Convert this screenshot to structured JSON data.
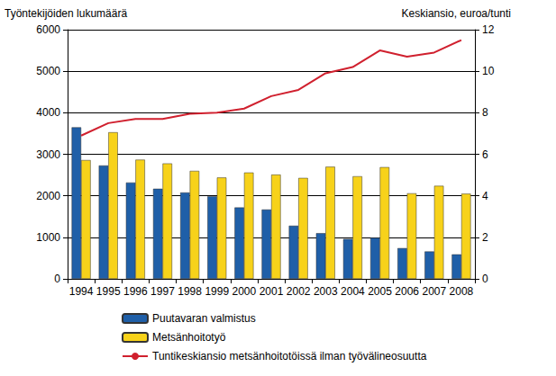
{
  "chart_data": {
    "type": "bar",
    "ylabel": "Työntekijöiden lukumäärä",
    "y2label": "Keskiansio, euroa/tunti",
    "categories": [
      "1994",
      "1995",
      "1996",
      "1997",
      "1998",
      "1999",
      "2000",
      "2001",
      "2002",
      "2003",
      "2004",
      "2005",
      "2006",
      "2007",
      "2008"
    ],
    "series": [
      {
        "name": "Puutavaran valmistus",
        "type": "bar",
        "color": "#1f5fa8",
        "values": [
          3650,
          2730,
          2320,
          2170,
          2080,
          1990,
          1720,
          1670,
          1280,
          1100,
          960,
          990,
          740,
          660,
          590
        ]
      },
      {
        "name": "Metsänhoitotyö",
        "type": "bar",
        "color": "#f7d21a",
        "values": [
          2860,
          3530,
          2870,
          2780,
          2600,
          2440,
          2560,
          2510,
          2430,
          2700,
          2470,
          2690,
          2060,
          2240,
          2050
        ]
      },
      {
        "name": "Tuntikeskiansio metsänhoitotöissä ilman työvälineosuutta",
        "type": "line",
        "axis": "y2",
        "color": "#d0202e",
        "values": [
          6.9,
          7.5,
          7.7,
          7.7,
          7.95,
          8.0,
          8.2,
          8.8,
          9.1,
          9.9,
          10.2,
          11.0,
          10.7,
          10.9,
          11.5
        ]
      }
    ],
    "ylim": [
      0,
      6000
    ],
    "yticks": [
      0,
      1000,
      2000,
      3000,
      4000,
      5000,
      6000
    ],
    "y2lim": [
      0,
      12
    ],
    "y2ticks": [
      0,
      2,
      4,
      6,
      8,
      10,
      12
    ],
    "grid": true,
    "legend": "bottom"
  }
}
